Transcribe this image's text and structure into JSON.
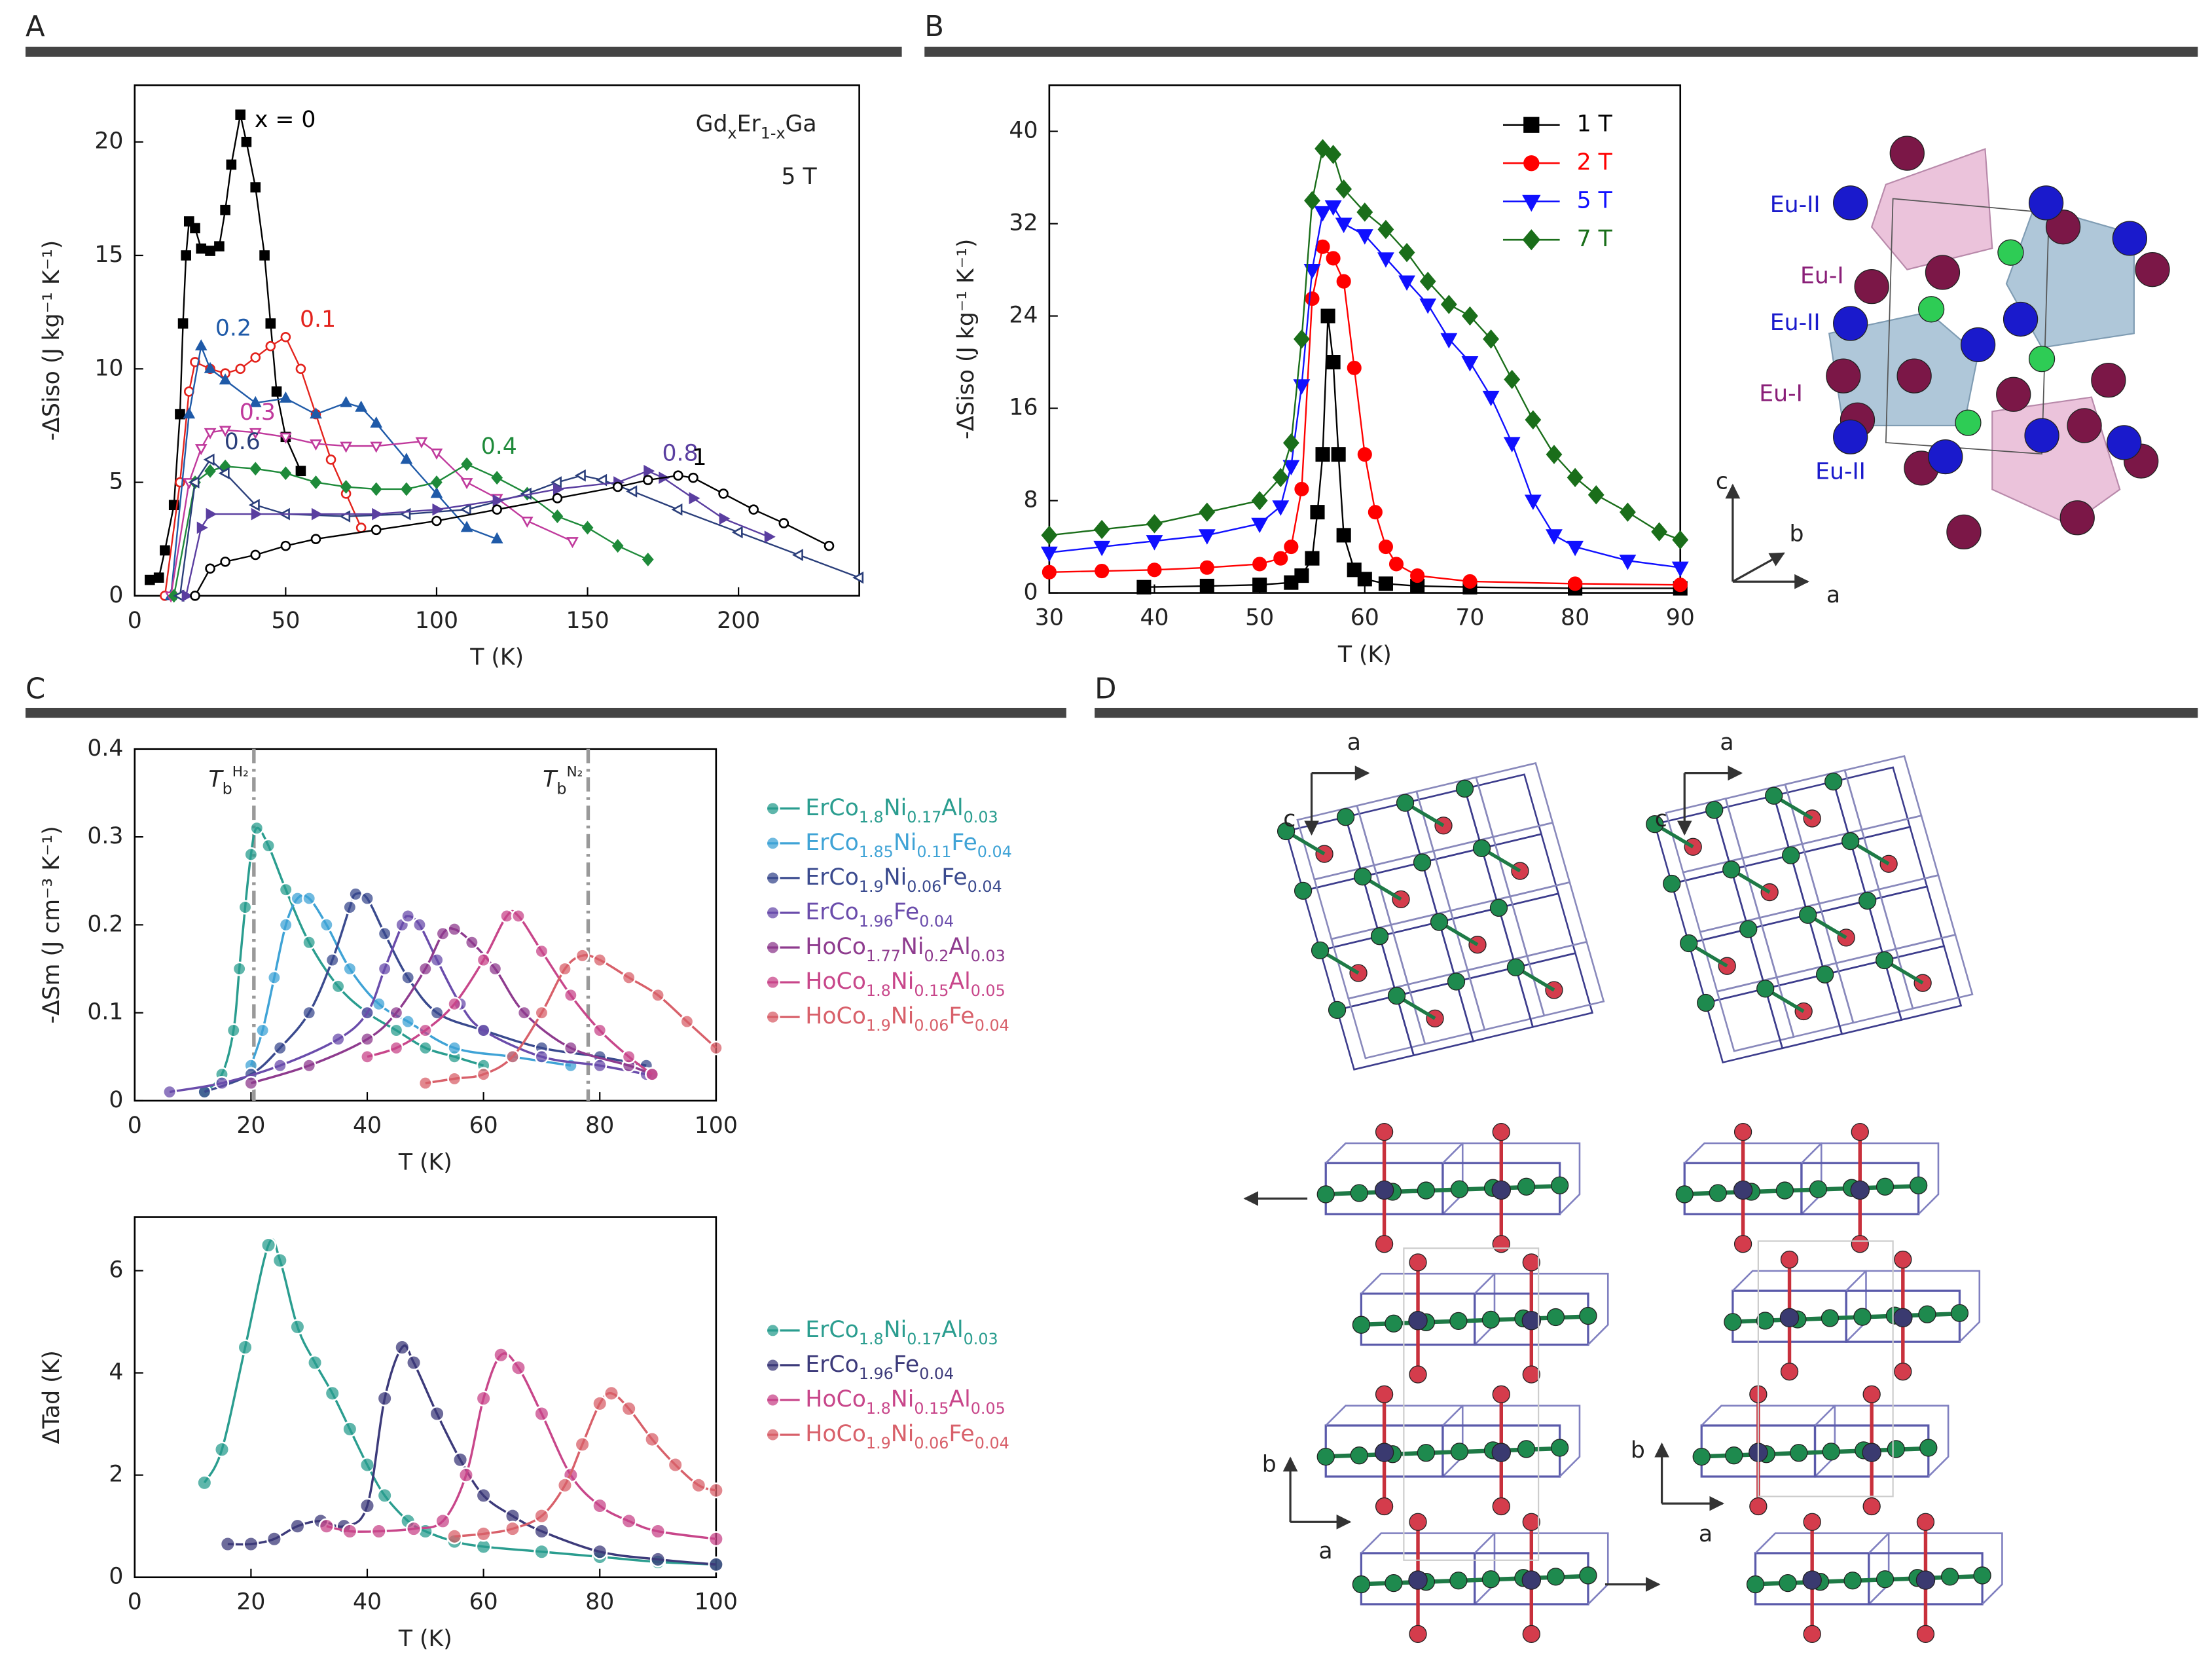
{
  "panels": [
    "A",
    "B",
    "C",
    "D"
  ],
  "chart_data": [
    {
      "type": "line",
      "xlabel": "T (K)",
      "ylabel": "-ΔSiso (J kg⁻¹ K⁻¹)",
      "annotations": [
        "GdxEr1-xGa",
        "5 T"
      ],
      "xlim": [
        0,
        240
      ],
      "xticks": [
        0,
        50,
        100,
        150,
        200
      ],
      "ylim": [
        0,
        22.5
      ],
      "yticks": [
        0,
        5,
        10,
        15,
        20
      ],
      "series": [
        {
          "name": "x = 0",
          "color": "#000000",
          "marker": "square",
          "x": [
            5,
            8,
            10,
            13,
            15,
            16,
            17,
            18,
            20,
            22,
            25,
            28,
            30,
            32,
            35,
            37,
            40,
            43,
            45,
            47,
            50,
            55
          ],
          "y": [
            0.7,
            0.8,
            2,
            4,
            8,
            12,
            15,
            16.5,
            16.2,
            15.3,
            15.2,
            15.4,
            17,
            19,
            21.2,
            20,
            18,
            15,
            12,
            9,
            7,
            5.5
          ]
        },
        {
          "name": "0.1",
          "color": "#e3221c",
          "marker": "open-circle",
          "x": [
            10,
            15,
            18,
            20,
            25,
            30,
            35,
            40,
            45,
            50,
            55,
            60,
            65,
            70,
            75
          ],
          "y": [
            0,
            5,
            9,
            10.3,
            10,
            9.8,
            10,
            10.5,
            11,
            11.4,
            10,
            8,
            6,
            4.5,
            3
          ]
        },
        {
          "name": "0.2",
          "color": "#1f5aa8",
          "marker": "triangle-up",
          "x": [
            12,
            18,
            22,
            25,
            30,
            40,
            50,
            60,
            70,
            75,
            80,
            90,
            100,
            110,
            120
          ],
          "y": [
            0,
            8,
            11,
            10,
            9.5,
            8.5,
            8.7,
            8,
            8.5,
            8.3,
            7.6,
            6,
            4.5,
            3,
            2.5
          ]
        },
        {
          "name": "0.3",
          "color": "#c0399c",
          "marker": "triangle-down-open",
          "x": [
            12,
            18,
            22,
            25,
            30,
            40,
            50,
            60,
            70,
            80,
            95,
            100,
            110,
            120,
            130,
            145
          ],
          "y": [
            0,
            5,
            6.5,
            7.2,
            7.3,
            7.2,
            7,
            6.7,
            6.6,
            6.6,
            6.8,
            6.3,
            5,
            4.3,
            3.3,
            2.4
          ]
        },
        {
          "name": "0.4",
          "color": "#1e8a3a",
          "marker": "diamond",
          "x": [
            13,
            20,
            25,
            30,
            40,
            50,
            60,
            70,
            80,
            90,
            100,
            110,
            120,
            130,
            140,
            150,
            160,
            170
          ],
          "y": [
            0,
            5,
            5.5,
            5.7,
            5.6,
            5.4,
            5,
            4.8,
            4.7,
            4.7,
            5,
            5.8,
            5.2,
            4.5,
            3.5,
            3,
            2.2,
            1.6
          ]
        },
        {
          "name": "0.6",
          "color": "#2a3e7a",
          "marker": "triangle-left-open",
          "x": [
            15,
            20,
            25,
            30,
            40,
            50,
            70,
            90,
            110,
            130,
            140,
            148,
            155,
            165,
            180,
            200,
            220,
            240
          ],
          "y": [
            0,
            5,
            6,
            5.4,
            4,
            3.6,
            3.5,
            3.6,
            3.8,
            4.5,
            5,
            5.3,
            5.1,
            4.6,
            3.8,
            2.8,
            1.8,
            0.8
          ]
        },
        {
          "name": "0.8",
          "color": "#5a3ea0",
          "marker": "triangle-right",
          "x": [
            17,
            22,
            25,
            40,
            60,
            80,
            100,
            120,
            140,
            160,
            170,
            175,
            185,
            195,
            210
          ],
          "y": [
            0,
            3,
            3.6,
            3.6,
            3.6,
            3.6,
            3.8,
            4.2,
            4.7,
            5,
            5.5,
            5.2,
            4.3,
            3.4,
            2.6
          ]
        },
        {
          "name": "1",
          "color": "#000000",
          "marker": "open-circle",
          "x": [
            20,
            25,
            30,
            40,
            50,
            60,
            80,
            100,
            120,
            140,
            160,
            170,
            180,
            185,
            195,
            205,
            215,
            230
          ],
          "y": [
            0,
            1.2,
            1.5,
            1.8,
            2.2,
            2.5,
            2.9,
            3.3,
            3.8,
            4.3,
            4.8,
            5.1,
            5.3,
            5.2,
            4.5,
            3.8,
            3.2,
            2.2
          ]
        }
      ]
    },
    {
      "type": "line",
      "xlabel": "T (K)",
      "ylabel": "-ΔSiso (J kg⁻¹ K⁻¹)",
      "legend": "upper right",
      "xlim": [
        30,
        90
      ],
      "xticks": [
        30,
        40,
        50,
        60,
        70,
        80,
        90
      ],
      "ylim": [
        0,
        44
      ],
      "yticks": [
        0,
        8,
        16,
        24,
        32,
        40
      ],
      "series": [
        {
          "name": "1 T",
          "color": "#000000",
          "marker": "square",
          "x": [
            39,
            45,
            50,
            53,
            54,
            55,
            55.5,
            56,
            56.5,
            57,
            57.5,
            58,
            59,
            60,
            62,
            65,
            70,
            80,
            90
          ],
          "y": [
            0.5,
            0.6,
            0.7,
            0.9,
            1.5,
            3,
            7,
            12,
            24,
            20,
            12,
            5,
            2,
            1.2,
            0.8,
            0.6,
            0.5,
            0.4,
            0.4
          ]
        },
        {
          "name": "2 T",
          "color": "#ff0000",
          "marker": "circle",
          "x": [
            30,
            35,
            40,
            45,
            50,
            52,
            53,
            54,
            55,
            56,
            57,
            58,
            59,
            60,
            61,
            62,
            63,
            65,
            70,
            80,
            90
          ],
          "y": [
            1.8,
            1.9,
            2,
            2.2,
            2.5,
            3,
            4,
            9,
            25.5,
            30,
            29,
            27,
            19.5,
            12,
            7,
            4,
            2.5,
            1.5,
            1,
            0.8,
            0.7
          ]
        },
        {
          "name": "5 T",
          "color": "#1010ff",
          "marker": "triangle-down",
          "x": [
            30,
            35,
            40,
            45,
            50,
            52,
            53,
            54,
            55,
            56,
            57,
            58,
            60,
            62,
            64,
            66,
            68,
            70,
            72,
            74,
            76,
            78,
            80,
            85,
            90
          ],
          "y": [
            3.5,
            4,
            4.5,
            5,
            6,
            7.5,
            11,
            18,
            28,
            33,
            33.5,
            32,
            31,
            29,
            27,
            25,
            22,
            20,
            17,
            13,
            8,
            5,
            4,
            2.8,
            2.2
          ]
        },
        {
          "name": "7 T",
          "color": "#1a6e1a",
          "marker": "diamond",
          "x": [
            30,
            35,
            40,
            45,
            50,
            52,
            53,
            54,
            55,
            56,
            57,
            58,
            60,
            62,
            64,
            66,
            68,
            70,
            72,
            74,
            76,
            78,
            80,
            82,
            85,
            88,
            90
          ],
          "y": [
            5,
            5.5,
            6,
            7,
            8,
            10,
            13,
            22,
            34,
            38.5,
            38,
            35,
            33,
            31.5,
            29.5,
            27,
            25,
            24,
            22,
            18.5,
            15,
            12,
            10,
            8.5,
            7,
            5.3,
            4.6
          ]
        }
      ]
    },
    {
      "type": "line",
      "xlabel": "T (K)",
      "ylabel": "-ΔSm (J cm⁻³ K⁻¹)",
      "legend": "outside right",
      "smooth": true,
      "xlim": [
        0,
        100
      ],
      "xticks": [
        0,
        20,
        40,
        60,
        80,
        100
      ],
      "ylim": [
        0,
        0.4
      ],
      "yticks": [
        0,
        0.1,
        0.2,
        0.3,
        0.4
      ],
      "reference_lines": [
        {
          "x": 20.5,
          "label": "TbH₂"
        },
        {
          "x": 78,
          "label": "TbN₂"
        }
      ],
      "series": [
        {
          "name": "ErCo1.8Ni0.17Al0.03",
          "color": "#2a9d8f",
          "marker": "sphere",
          "x": [
            12,
            15,
            17,
            18,
            19,
            20,
            21,
            23,
            26,
            30,
            35,
            40,
            45,
            50,
            55,
            60
          ],
          "y": [
            0.01,
            0.03,
            0.08,
            0.15,
            0.22,
            0.28,
            0.31,
            0.29,
            0.24,
            0.18,
            0.13,
            0.1,
            0.08,
            0.06,
            0.05,
            0.04
          ]
        },
        {
          "name": "ErCo1.85Ni0.11Fe0.04",
          "color": "#3fa3d6",
          "marker": "sphere",
          "x": [
            20,
            22,
            24,
            26,
            28,
            30,
            33,
            37,
            42,
            47,
            55,
            65,
            75
          ],
          "y": [
            0.04,
            0.08,
            0.14,
            0.2,
            0.23,
            0.23,
            0.2,
            0.15,
            0.11,
            0.09,
            0.06,
            0.05,
            0.04
          ]
        },
        {
          "name": "ErCo1.9Ni0.06Fe0.04",
          "color": "#3a4a8e",
          "marker": "sphere",
          "x": [
            12,
            20,
            25,
            30,
            34,
            37,
            38,
            40,
            43,
            47,
            52,
            60,
            70,
            80,
            88
          ],
          "y": [
            0.01,
            0.03,
            0.06,
            0.1,
            0.16,
            0.22,
            0.235,
            0.23,
            0.19,
            0.14,
            0.1,
            0.08,
            0.06,
            0.05,
            0.04
          ]
        },
        {
          "name": "ErCo1.96Fe0.04",
          "color": "#6a4cab",
          "marker": "sphere",
          "x": [
            6,
            15,
            25,
            35,
            40,
            43,
            46,
            47,
            49,
            52,
            56,
            60,
            70,
            80,
            88
          ],
          "y": [
            0.01,
            0.02,
            0.04,
            0.07,
            0.1,
            0.15,
            0.2,
            0.21,
            0.2,
            0.16,
            0.11,
            0.08,
            0.05,
            0.04,
            0.03
          ]
        },
        {
          "name": "HoCo1.77Ni0.2Al0.03",
          "color": "#8e3b8e",
          "marker": "sphere",
          "x": [
            20,
            30,
            40,
            45,
            50,
            53,
            55,
            58,
            62,
            67,
            75,
            85,
            89
          ],
          "y": [
            0.02,
            0.04,
            0.07,
            0.1,
            0.15,
            0.19,
            0.195,
            0.18,
            0.15,
            0.1,
            0.06,
            0.04,
            0.03
          ]
        },
        {
          "name": "HoCo1.8Ni0.15Al0.05",
          "color": "#c8468a",
          "marker": "sphere",
          "x": [
            40,
            45,
            50,
            55,
            60,
            64,
            66,
            70,
            75,
            80,
            85,
            89
          ],
          "y": [
            0.05,
            0.06,
            0.08,
            0.11,
            0.16,
            0.21,
            0.21,
            0.17,
            0.12,
            0.08,
            0.05,
            0.03
          ]
        },
        {
          "name": "HoCo1.9Ni0.06Fe0.04",
          "color": "#d8606a",
          "marker": "sphere",
          "x": [
            50,
            55,
            60,
            65,
            70,
            74,
            77,
            80,
            85,
            90,
            95,
            100
          ],
          "y": [
            0.02,
            0.025,
            0.03,
            0.05,
            0.1,
            0.15,
            0.165,
            0.16,
            0.14,
            0.12,
            0.09,
            0.06
          ]
        }
      ]
    },
    {
      "type": "line",
      "xlabel": "T (K)",
      "ylabel": "ΔTad (K)",
      "legend": "outside right",
      "smooth": true,
      "xlim": [
        0,
        100
      ],
      "xticks": [
        0,
        20,
        40,
        60,
        80,
        100
      ],
      "ylim": [
        0,
        7.05
      ],
      "yticks": [
        0,
        2,
        4,
        6
      ],
      "series": [
        {
          "name": "ErCo1.8Ni0.17Al0.03",
          "color": "#2a9d8f",
          "marker": "sphere",
          "x": [
            12,
            15,
            19,
            23,
            25,
            28,
            31,
            34,
            37,
            40,
            43,
            47,
            50,
            55,
            60,
            70,
            80,
            90,
            100
          ],
          "y": [
            1.85,
            2.5,
            4.5,
            6.5,
            6.2,
            4.9,
            4.2,
            3.6,
            2.9,
            2.2,
            1.6,
            1.1,
            0.9,
            0.7,
            0.6,
            0.5,
            0.4,
            0.3,
            0.25
          ]
        },
        {
          "name": "ErCo1.96Fe0.04",
          "color": "#3c3a7a",
          "marker": "sphere",
          "x": [
            16,
            20,
            24,
            28,
            32,
            36,
            40,
            43,
            46,
            48,
            52,
            56,
            60,
            65,
            70,
            80,
            90,
            100
          ],
          "y": [
            0.65,
            0.65,
            0.75,
            1,
            1.1,
            1,
            1.4,
            3.5,
            4.5,
            4.2,
            3.2,
            2.3,
            1.6,
            1.2,
            0.9,
            0.5,
            0.35,
            0.25
          ]
        },
        {
          "name": "HoCo1.8Ni0.15Al0.05",
          "color": "#c8468a",
          "marker": "sphere",
          "x": [
            33,
            37,
            42,
            48,
            53,
            57,
            60,
            63,
            66,
            70,
            75,
            80,
            85,
            90,
            100
          ],
          "y": [
            1,
            0.9,
            0.9,
            0.95,
            1.1,
            2,
            3.5,
            4.35,
            4.1,
            3.2,
            2,
            1.4,
            1.1,
            0.9,
            0.75
          ]
        },
        {
          "name": "HoCo1.9Ni0.06Fe0.04",
          "color": "#d8606a",
          "marker": "sphere",
          "x": [
            55,
            60,
            65,
            70,
            74,
            77,
            80,
            82,
            85,
            89,
            93,
            97,
            100
          ],
          "y": [
            0.8,
            0.85,
            0.95,
            1.2,
            1.8,
            2.6,
            3.4,
            3.6,
            3.3,
            2.7,
            2.2,
            1.8,
            1.7
          ]
        }
      ]
    }
  ],
  "structure_b": {
    "labels": [
      "Eu-II",
      "Eu-I",
      "Eu-II",
      "Eu-I",
      "Eu-II"
    ],
    "axes": [
      "c",
      "b",
      "a"
    ]
  },
  "structure_d": {
    "axes": [
      "a",
      "c",
      "a",
      "c",
      "b",
      "a",
      "b",
      "a"
    ]
  }
}
